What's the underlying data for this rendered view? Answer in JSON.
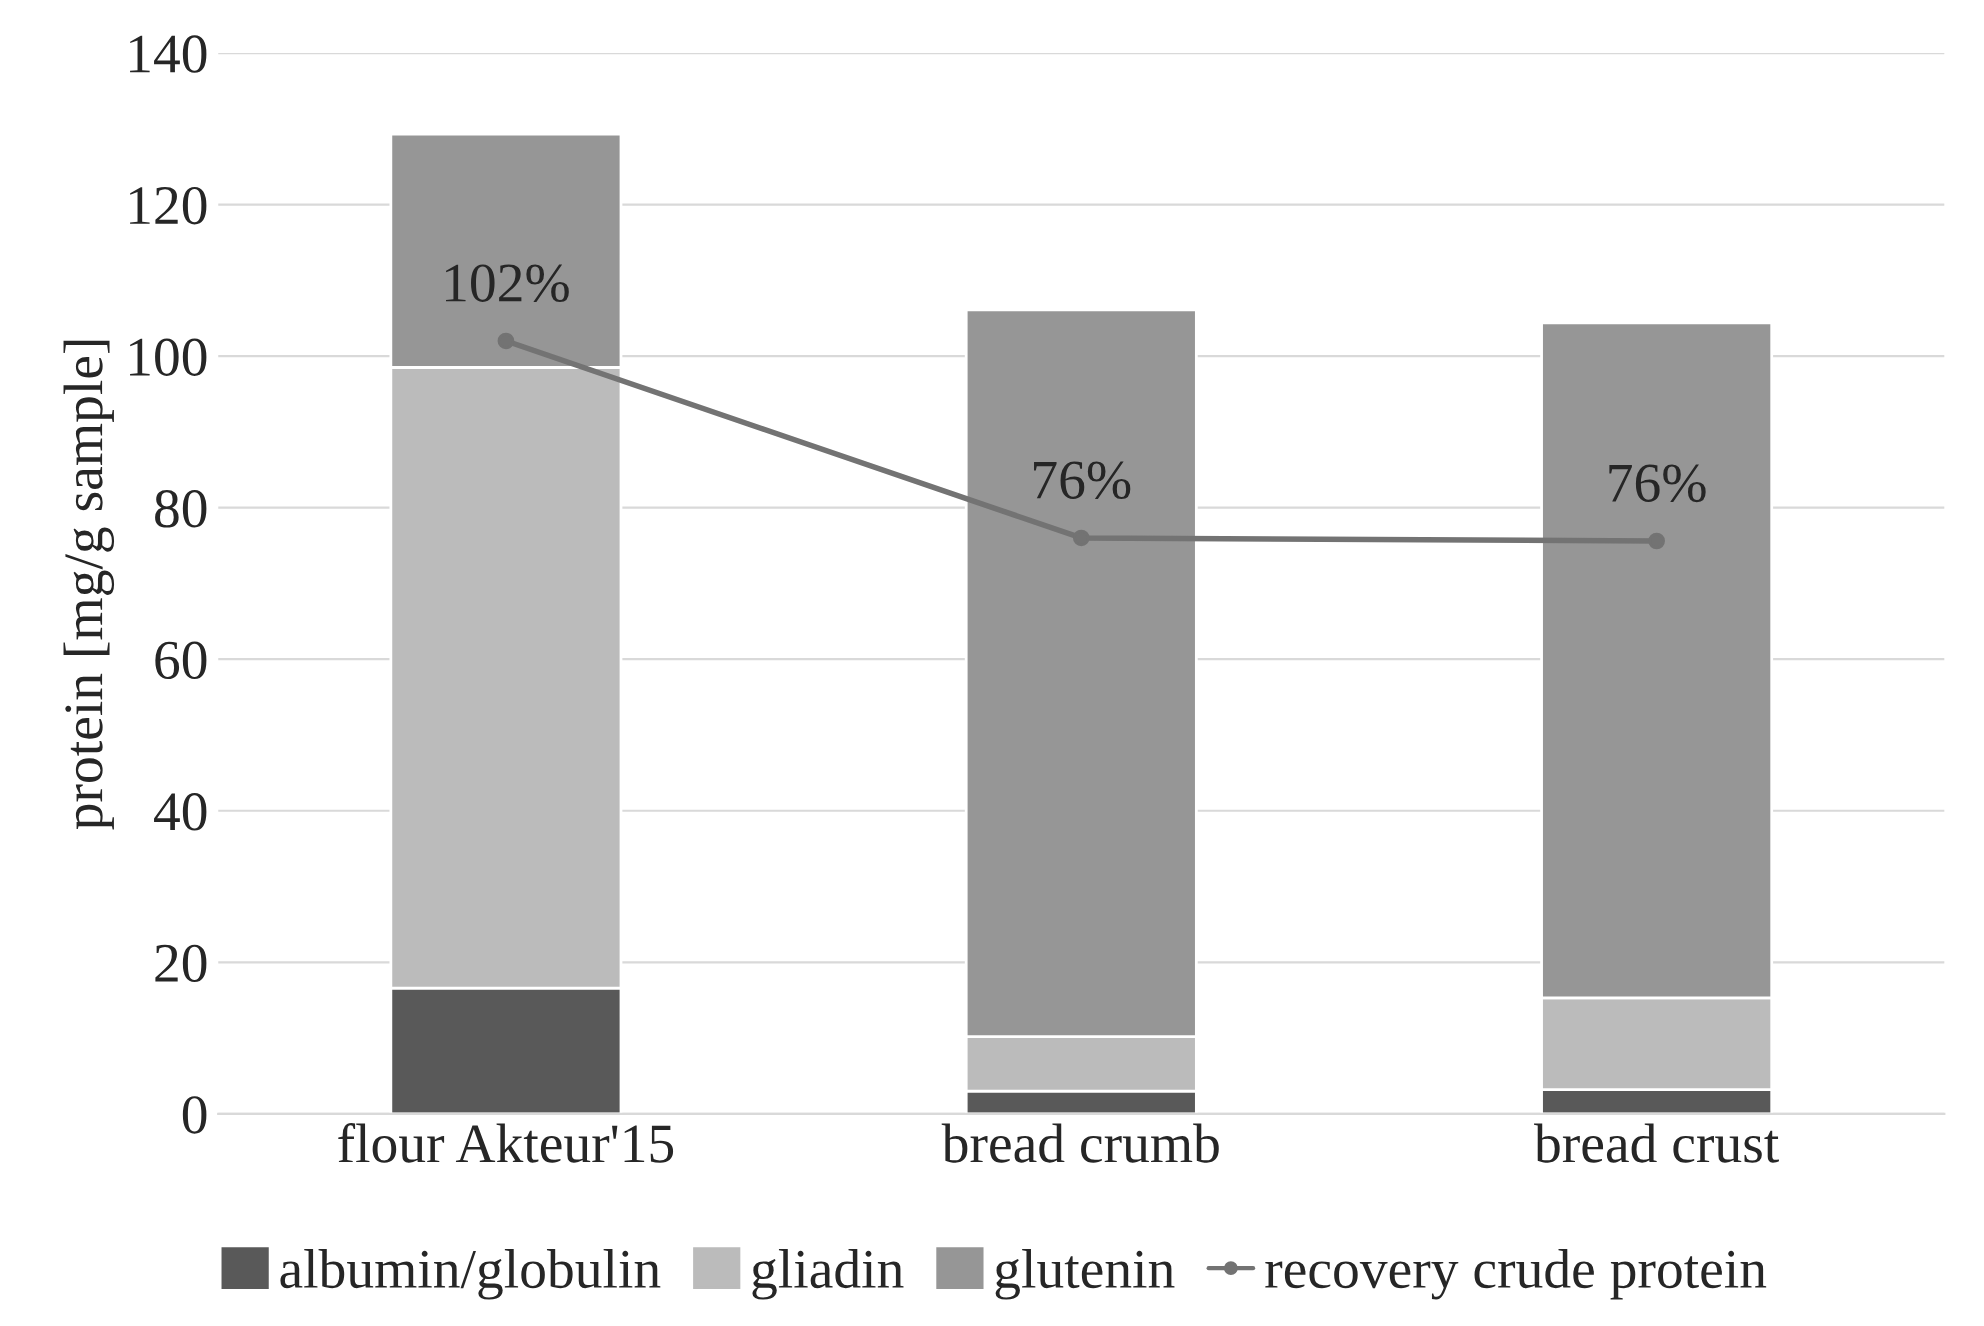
{
  "chart_data": {
    "type": "bar",
    "stacked": true,
    "categories": [
      "flour Akteur'15",
      "bread crumb",
      "bread crust"
    ],
    "ylabel": "protein [mg/g sample]",
    "ylim": [
      0,
      140
    ],
    "yticks": [
      0,
      20,
      40,
      60,
      80,
      100,
      120,
      140
    ],
    "grid": "y",
    "legend": "bottom",
    "series": [
      {
        "name": "albumin/globulin",
        "color": "#595959",
        "values": [
          16.6,
          3.0,
          3.2
        ]
      },
      {
        "name": "gliadin",
        "color": "#bbbbbb",
        "values": [
          81.9,
          7.2,
          12.1
        ]
      },
      {
        "name": "glutenin",
        "color": "#969696",
        "values": [
          30.8,
          95.9,
          89.1
        ]
      },
      {
        "name": "recovery crude protein",
        "type": "line",
        "color": "#737373",
        "marker": "circle",
        "values": [
          102,
          76,
          75.6
        ],
        "value_labels": [
          "102%",
          "76%",
          "76%"
        ]
      }
    ]
  }
}
